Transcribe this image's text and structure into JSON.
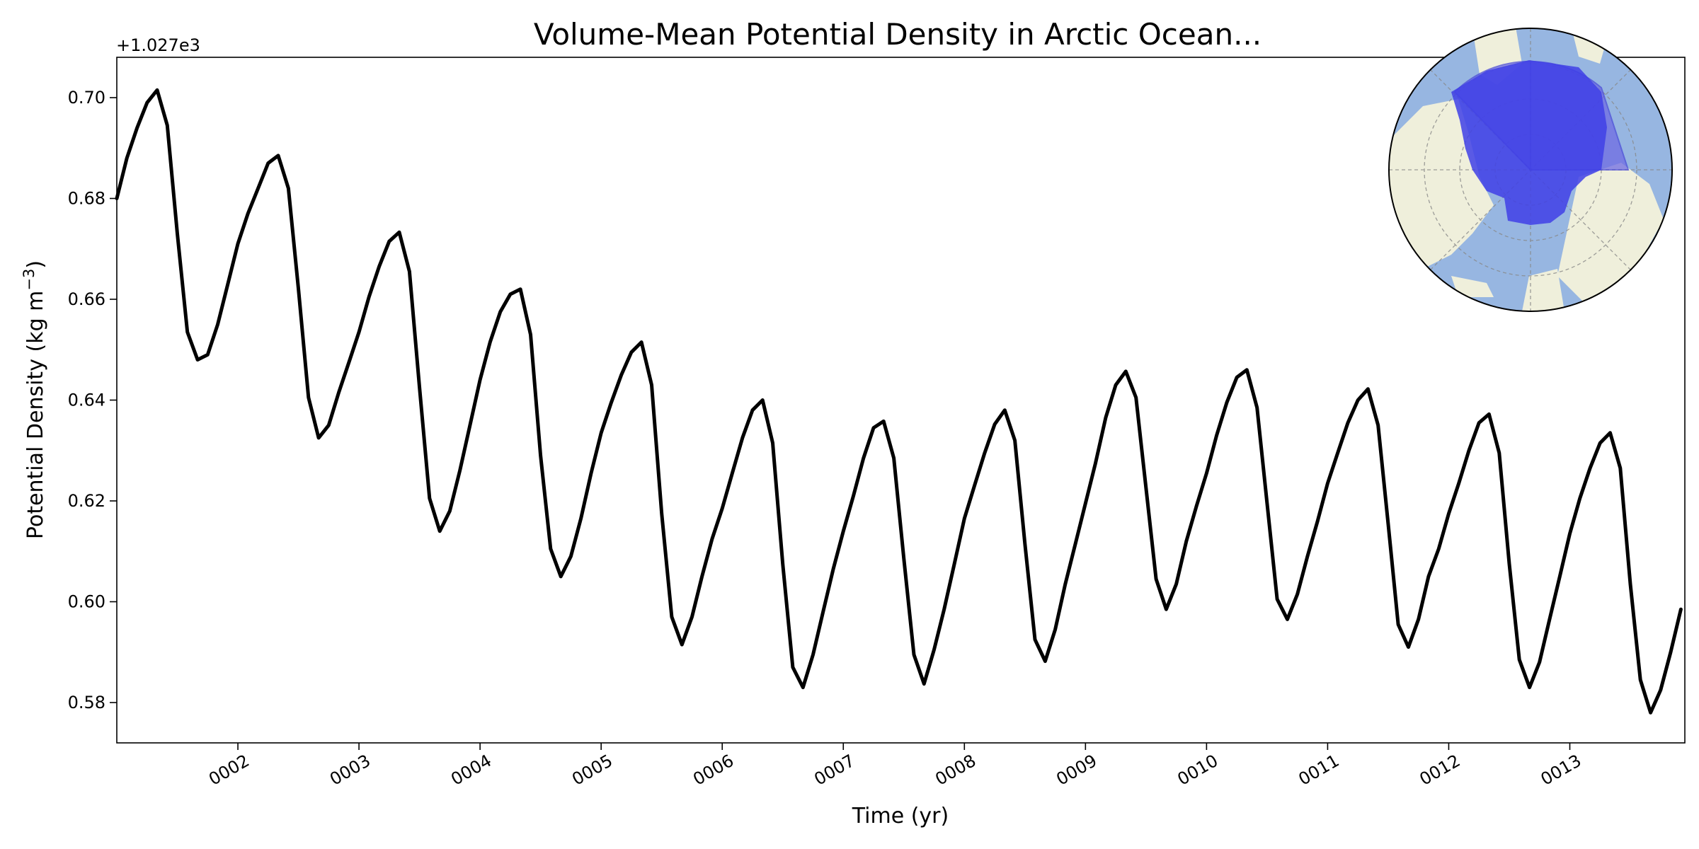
{
  "chart_data": {
    "type": "line",
    "title": "Volume-Mean Potential Density in Arctic Ocean...",
    "xlabel": "Time (yr)",
    "ylabel_main": "Potential Density (kg m",
    "ylabel_sup": "−3",
    "ylabel_close": ")",
    "y_offset_label": "+1.027e3",
    "xlim": [
      1.0,
      13.95
    ],
    "ylim": [
      0.572,
      0.708
    ],
    "x_ticks": [
      {
        "value": 2,
        "label": "0002"
      },
      {
        "value": 3,
        "label": "0003"
      },
      {
        "value": 4,
        "label": "0004"
      },
      {
        "value": 5,
        "label": "0005"
      },
      {
        "value": 6,
        "label": "0006"
      },
      {
        "value": 7,
        "label": "0007"
      },
      {
        "value": 8,
        "label": "0008"
      },
      {
        "value": 9,
        "label": "0009"
      },
      {
        "value": 10,
        "label": "0010"
      },
      {
        "value": 11,
        "label": "0011"
      },
      {
        "value": 12,
        "label": "0012"
      },
      {
        "value": 13,
        "label": "0013"
      }
    ],
    "y_ticks": [
      {
        "value": 0.58,
        "label": "0.58"
      },
      {
        "value": 0.6,
        "label": "0.60"
      },
      {
        "value": 0.62,
        "label": "0.62"
      },
      {
        "value": 0.64,
        "label": "0.64"
      },
      {
        "value": 0.66,
        "label": "0.66"
      },
      {
        "value": 0.68,
        "label": "0.68"
      },
      {
        "value": 0.7,
        "label": "0.70"
      }
    ],
    "grid": false,
    "line_color": "#000000",
    "series": [
      {
        "x": [
          1.0,
          1.083,
          1.167,
          1.25,
          1.333,
          1.417,
          1.5,
          1.583,
          1.667,
          1.75,
          1.833,
          1.917,
          2.0,
          2.083,
          2.167,
          2.25,
          2.333,
          2.417,
          2.5,
          2.583,
          2.667,
          2.75,
          2.833,
          2.917,
          3.0,
          3.083,
          3.167,
          3.25,
          3.333,
          3.417,
          3.5,
          3.583,
          3.667,
          3.75,
          3.833,
          3.917,
          4.0,
          4.083,
          4.167,
          4.25,
          4.333,
          4.417,
          4.5,
          4.583,
          4.667,
          4.75,
          4.833,
          4.917,
          5.0,
          5.083,
          5.167,
          5.25,
          5.333,
          5.417,
          5.5,
          5.583,
          5.667,
          5.75,
          5.833,
          5.917,
          6.0,
          6.083,
          6.167,
          6.25,
          6.333,
          6.417,
          6.5,
          6.583,
          6.667,
          6.75,
          6.833,
          6.917,
          7.0,
          7.083,
          7.167,
          7.25,
          7.333,
          7.417,
          7.5,
          7.583,
          7.667,
          7.75,
          7.833,
          7.917,
          8.0,
          8.083,
          8.167,
          8.25,
          8.333,
          8.417,
          8.5,
          8.583,
          8.667,
          8.75,
          8.833,
          8.917,
          9.0,
          9.083,
          9.167,
          9.25,
          9.333,
          9.417,
          9.5,
          9.583,
          9.667,
          9.75,
          9.833,
          9.917,
          10.0,
          10.083,
          10.167,
          10.25,
          10.333,
          10.417,
          10.5,
          10.583,
          10.667,
          10.75,
          10.833,
          10.917,
          11.0,
          11.083,
          11.167,
          11.25,
          11.333,
          11.417,
          11.5,
          11.583,
          11.667,
          11.75,
          11.833,
          11.917,
          12.0,
          12.083,
          12.167,
          12.25,
          12.333,
          12.417,
          12.5,
          12.583,
          12.667,
          12.75,
          12.833,
          12.917,
          13.0,
          13.083,
          13.167,
          13.25,
          13.333,
          13.417,
          13.5,
          13.583,
          13.667,
          13.75,
          13.833,
          13.917
        ],
        "y": [
          0.68,
          0.688,
          0.694,
          0.699,
          0.7015,
          0.6945,
          0.673,
          0.6535,
          0.648,
          0.649,
          0.655,
          0.663,
          0.671,
          0.677,
          0.682,
          0.687,
          0.6885,
          0.682,
          0.662,
          0.6405,
          0.6325,
          0.635,
          0.6415,
          0.6475,
          0.6535,
          0.6605,
          0.6665,
          0.6715,
          0.6733,
          0.6655,
          0.6425,
          0.6205,
          0.614,
          0.618,
          0.626,
          0.635,
          0.644,
          0.6515,
          0.6575,
          0.661,
          0.662,
          0.653,
          0.629,
          0.6105,
          0.605,
          0.609,
          0.6165,
          0.6255,
          0.6335,
          0.6395,
          0.645,
          0.6495,
          0.6515,
          0.643,
          0.6175,
          0.597,
          0.5915,
          0.597,
          0.605,
          0.6125,
          0.6185,
          0.6255,
          0.6325,
          0.638,
          0.64,
          0.6315,
          0.6075,
          0.587,
          0.583,
          0.5895,
          0.598,
          0.6065,
          0.614,
          0.621,
          0.6285,
          0.6345,
          0.6358,
          0.6285,
          0.6085,
          0.5895,
          0.5837,
          0.5905,
          0.5985,
          0.6075,
          0.6165,
          0.623,
          0.6295,
          0.6352,
          0.638,
          0.632,
          0.6115,
          0.5925,
          0.5882,
          0.5945,
          0.6035,
          0.6115,
          0.6195,
          0.6275,
          0.6365,
          0.643,
          0.6457,
          0.6405,
          0.6225,
          0.6045,
          0.5985,
          0.6035,
          0.612,
          0.619,
          0.6255,
          0.633,
          0.6395,
          0.6445,
          0.646,
          0.6385,
          0.6195,
          0.6005,
          0.5965,
          0.6015,
          0.609,
          0.616,
          0.6235,
          0.6295,
          0.6355,
          0.64,
          0.6422,
          0.635,
          0.6155,
          0.5955,
          0.591,
          0.5965,
          0.605,
          0.6105,
          0.6175,
          0.6235,
          0.63,
          0.6355,
          0.6372,
          0.6295,
          0.6075,
          0.5885,
          0.583,
          0.588,
          0.5965,
          0.605,
          0.6135,
          0.6205,
          0.6265,
          0.6315,
          0.6335,
          0.6265,
          0.6035,
          0.5845,
          0.578,
          0.5825,
          0.59,
          0.5985
        ]
      }
    ]
  },
  "inset_map": {
    "ocean_color": "#97b6e1",
    "land_color": "#efefdb",
    "region_color": "#3f3fe6",
    "region_sector_color": "#6f6ce3"
  }
}
